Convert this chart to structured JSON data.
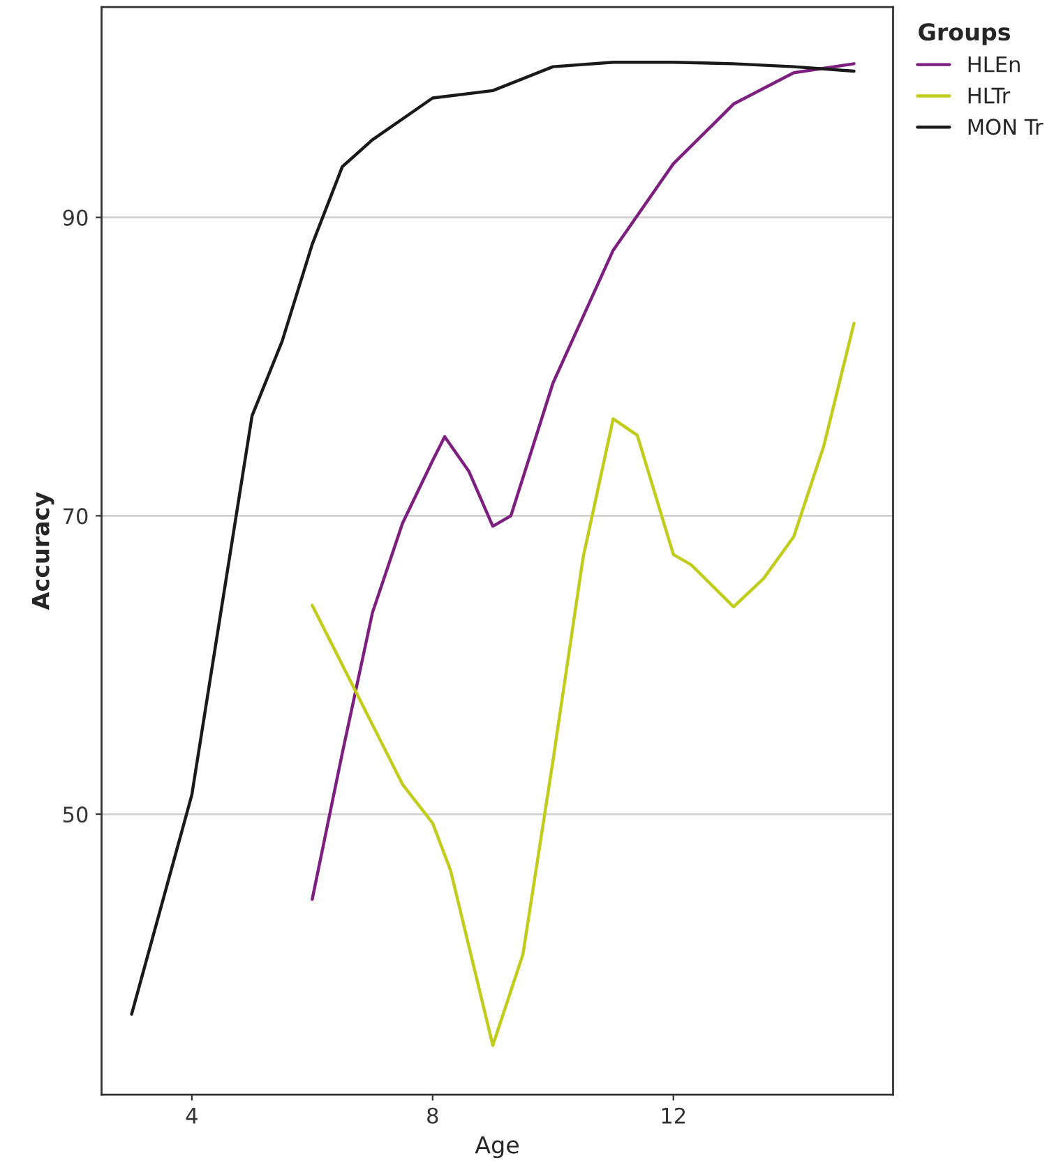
{
  "chart_data": {
    "type": "line",
    "xlabel": "Age",
    "ylabel": "Accuracy",
    "legend_title": "Groups",
    "xlim": [
      2.5,
      15.65
    ],
    "ylim": [
      31.2,
      104.1
    ],
    "xticks": [
      4,
      8,
      12
    ],
    "yticks": [
      50,
      70,
      90
    ],
    "grid": "y",
    "legend": "top right",
    "line_style": "solid",
    "series": [
      {
        "name": "HLEn",
        "color": "#7d1e80",
        "x": [
          6,
          6.5,
          7,
          7.5,
          8,
          8.2,
          8.6,
          9,
          9.3,
          10,
          11,
          12,
          13,
          14,
          15
        ],
        "values": [
          44.3,
          54.1,
          63.5,
          69.5,
          73.7,
          75.3,
          73,
          69.3,
          70,
          78.9,
          87.8,
          93.6,
          97.6,
          99.7,
          100.3
        ]
      },
      {
        "name": "HLTr",
        "color": "#c2cc1a",
        "x": [
          6,
          7,
          7.5,
          8,
          8.3,
          9,
          9.5,
          10,
          10.5,
          11,
          11.4,
          12,
          12.3,
          13,
          13.5,
          14,
          14.5,
          15
        ],
        "values": [
          64,
          56,
          52,
          49.4,
          46.2,
          34.5,
          40.6,
          53.6,
          67.2,
          76.5,
          75.4,
          67.4,
          66.7,
          63.9,
          65.8,
          68.6,
          74.7,
          82.9
        ]
      },
      {
        "name": "MON Tr",
        "color": "#1a1a1a",
        "x": [
          3,
          4,
          5,
          5.5,
          6,
          6.5,
          7,
          7.5,
          8,
          9,
          10,
          11,
          12,
          13,
          14,
          15
        ],
        "values": [
          36.6,
          51.3,
          76.7,
          81.7,
          88.2,
          93.4,
          95.2,
          96.6,
          98,
          98.5,
          100.1,
          100.4,
          100.4,
          100.3,
          100.1,
          99.8
        ]
      }
    ]
  }
}
